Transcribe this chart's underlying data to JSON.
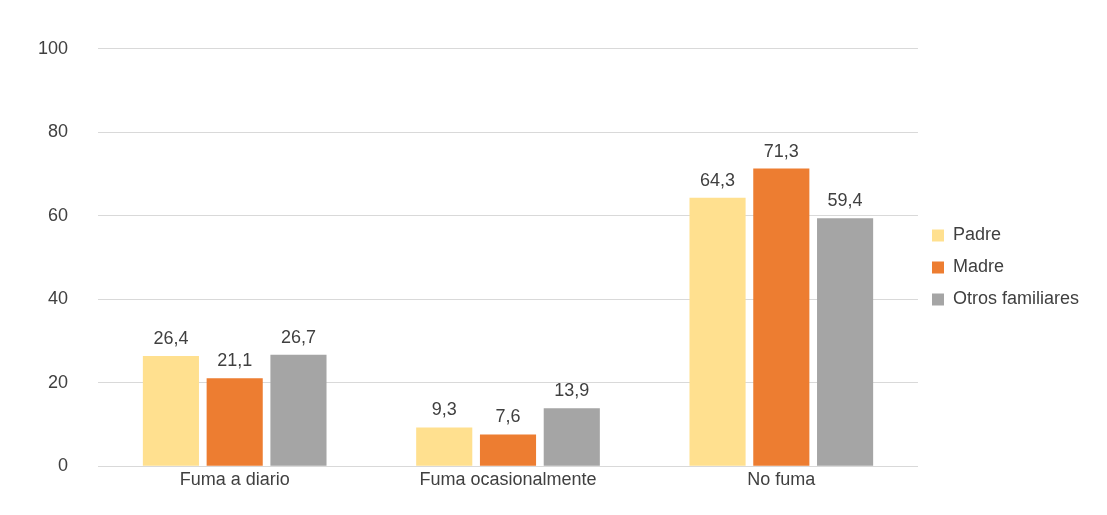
{
  "chart_data": {
    "type": "bar",
    "categories": [
      "Fuma a diario",
      "Fuma ocasionalmente",
      "No fuma"
    ],
    "series": [
      {
        "name": "Padre",
        "color": "#ffe08f",
        "values": [
          26.4,
          9.3,
          64.3
        ],
        "value_labels": [
          "26,4",
          "9,3",
          "64,3"
        ]
      },
      {
        "name": "Madre",
        "color": "#ed7d31",
        "values": [
          21.1,
          7.6,
          71.3
        ],
        "value_labels": [
          "21,1",
          "7,6",
          "71,3"
        ]
      },
      {
        "name": "Otros familiares",
        "color": "#a5a5a5",
        "values": [
          26.7,
          13.9,
          59.4
        ],
        "value_labels": [
          "26,7",
          "13,9",
          "59,4"
        ]
      }
    ],
    "ylim": [
      0,
      100
    ],
    "yticks": [
      0,
      20,
      40,
      60,
      80,
      100
    ],
    "grid": "y",
    "legend": "right"
  }
}
